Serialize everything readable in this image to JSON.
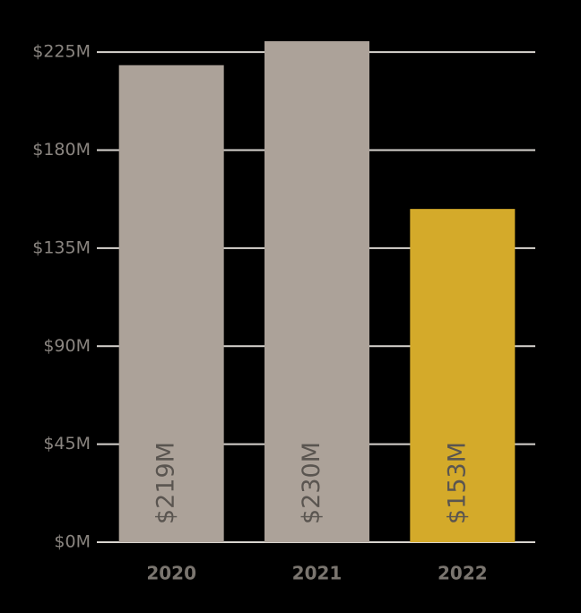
{
  "chart_data": {
    "type": "bar",
    "categories": [
      "2020",
      "2021",
      "2022"
    ],
    "values": [
      219,
      230,
      153
    ],
    "value_labels": [
      "$219M",
      "$230M",
      "$153M"
    ],
    "colors": [
      "#aca299",
      "#aca299",
      "#d4aa2a"
    ],
    "ylim": [
      0,
      230
    ],
    "yticks": [
      {
        "value": 0,
        "label": "$0M"
      },
      {
        "value": 45,
        "label": "$45M"
      },
      {
        "value": 90,
        "label": "$90M"
      },
      {
        "value": 135,
        "label": "$135M"
      },
      {
        "value": 180,
        "label": "$180M"
      },
      {
        "value": 225,
        "label": "$225M"
      }
    ],
    "grid": true
  }
}
